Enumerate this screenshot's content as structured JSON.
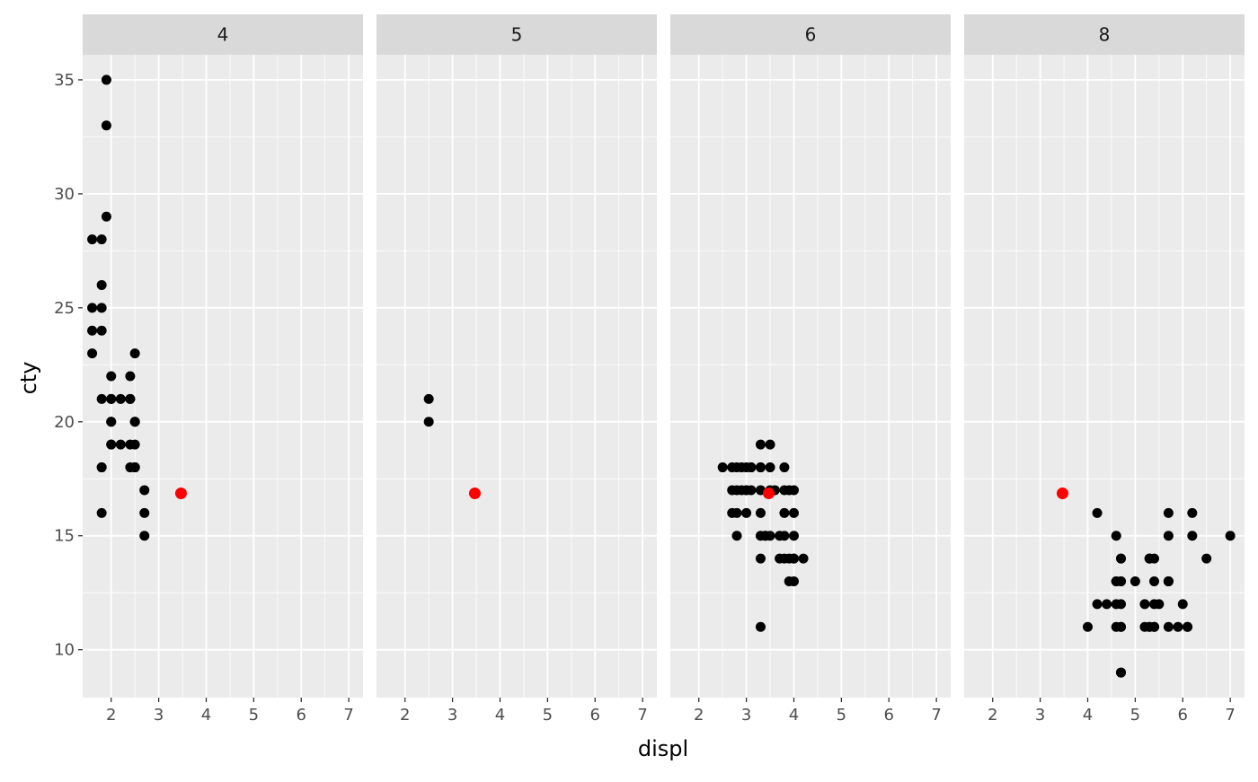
{
  "chart_data": {
    "type": "scatter",
    "facet_variable": "cyl",
    "xlabel": "displ",
    "ylabel": "cty",
    "xlim": [
      1.4,
      7.3
    ],
    "ylim": [
      7.9,
      36.1
    ],
    "x_ticks": [
      2,
      3,
      4,
      5,
      6,
      7
    ],
    "y_ticks": [
      10,
      15,
      20,
      25,
      30,
      35
    ],
    "grid": true,
    "point_color": "#000000",
    "highlight_color": "#ff0000",
    "panel_background": "#ebebeb",
    "strip_background": "#d9d9d9",
    "highlight_point": {
      "x": 3.47,
      "y": 16.86
    },
    "facets": [
      {
        "label": "4",
        "points": [
          [
            1.8,
            18
          ],
          [
            1.8,
            21
          ],
          [
            2.0,
            20
          ],
          [
            2.0,
            21
          ],
          [
            1.8,
            16
          ],
          [
            1.8,
            18
          ],
          [
            2.0,
            20
          ],
          [
            2.0,
            19
          ],
          [
            2.0,
            22
          ],
          [
            2.4,
            21
          ],
          [
            2.4,
            19
          ],
          [
            2.5,
            18
          ],
          [
            2.5,
            20
          ],
          [
            2.2,
            21
          ],
          [
            2.2,
            19
          ],
          [
            2.5,
            18
          ],
          [
            2.5,
            20
          ],
          [
            2.7,
            17
          ],
          [
            2.7,
            16
          ],
          [
            2.7,
            15
          ],
          [
            1.8,
            28
          ],
          [
            1.6,
            28
          ],
          [
            1.6,
            25
          ],
          [
            1.6,
            24
          ],
          [
            1.6,
            23
          ],
          [
            1.8,
            24
          ],
          [
            1.8,
            25
          ],
          [
            1.8,
            26
          ],
          [
            1.9,
            33
          ],
          [
            1.9,
            35
          ],
          [
            1.9,
            29
          ],
          [
            2.4,
            22
          ],
          [
            2.4,
            21
          ],
          [
            2.5,
            23
          ],
          [
            2.5,
            19
          ],
          [
            2.5,
            18
          ],
          [
            2.4,
            18
          ],
          [
            2.0,
            19
          ],
          [
            2.0,
            21
          ]
        ]
      },
      {
        "label": "5",
        "points": [
          [
            2.5,
            21
          ],
          [
            2.5,
            20
          ]
        ]
      },
      {
        "label": "6",
        "points": [
          [
            2.8,
            16
          ],
          [
            3.1,
            18
          ],
          [
            2.8,
            18
          ],
          [
            3.0,
            16
          ],
          [
            3.1,
            17
          ],
          [
            3.3,
            16
          ],
          [
            3.3,
            15
          ],
          [
            3.8,
            15
          ],
          [
            3.8,
            16
          ],
          [
            3.3,
            17
          ],
          [
            3.3,
            19
          ],
          [
            3.5,
            19
          ],
          [
            3.0,
            18
          ],
          [
            3.5,
            18
          ],
          [
            2.5,
            18
          ],
          [
            2.7,
            17
          ],
          [
            2.8,
            17
          ],
          [
            3.0,
            17
          ],
          [
            3.1,
            18
          ],
          [
            3.3,
            18
          ],
          [
            3.5,
            17
          ],
          [
            3.8,
            17
          ],
          [
            3.8,
            18
          ],
          [
            3.9,
            17
          ],
          [
            4.0,
            17
          ],
          [
            4.0,
            16
          ],
          [
            4.0,
            15
          ],
          [
            3.7,
            15
          ],
          [
            3.7,
            14
          ],
          [
            4.0,
            14
          ],
          [
            4.2,
            14
          ],
          [
            3.3,
            11
          ],
          [
            3.4,
            15
          ],
          [
            3.8,
            14
          ],
          [
            3.9,
            14
          ],
          [
            4.0,
            13
          ],
          [
            3.9,
            13
          ],
          [
            2.7,
            16
          ],
          [
            2.8,
            15
          ],
          [
            3.0,
            17
          ],
          [
            3.3,
            14
          ],
          [
            2.9,
            17
          ],
          [
            3.4,
            15
          ],
          [
            3.5,
            15
          ],
          [
            3.6,
            17
          ],
          [
            2.9,
            18
          ],
          [
            3.3,
            18
          ],
          [
            4.0,
            14
          ],
          [
            2.7,
            18
          ]
        ]
      },
      {
        "label": "8",
        "points": [
          [
            5.3,
            14
          ],
          [
            5.3,
            11
          ],
          [
            5.3,
            14
          ],
          [
            5.7,
            13
          ],
          [
            6.0,
            12
          ],
          [
            5.7,
            16
          ],
          [
            5.7,
            15
          ],
          [
            6.2,
            16
          ],
          [
            6.2,
            15
          ],
          [
            7.0,
            15
          ],
          [
            5.3,
            14
          ],
          [
            5.3,
            11
          ],
          [
            5.7,
            11
          ],
          [
            6.5,
            14
          ],
          [
            4.7,
            9
          ],
          [
            4.7,
            13
          ],
          [
            4.7,
            11
          ],
          [
            5.2,
            11
          ],
          [
            5.2,
            12
          ],
          [
            5.7,
            13
          ],
          [
            5.9,
            11
          ],
          [
            4.6,
            11
          ],
          [
            5.4,
            11
          ],
          [
            5.4,
            12
          ],
          [
            4.6,
            13
          ],
          [
            5.4,
            14
          ],
          [
            5.4,
            13
          ],
          [
            4.7,
            12
          ],
          [
            4.7,
            14
          ],
          [
            5.0,
            13
          ],
          [
            4.2,
            16
          ],
          [
            4.2,
            12
          ],
          [
            4.4,
            12
          ],
          [
            5.4,
            11
          ],
          [
            4.0,
            11
          ],
          [
            4.6,
            13
          ],
          [
            4.6,
            15
          ],
          [
            6.1,
            11
          ],
          [
            4.7,
            9
          ],
          [
            4.7,
            14
          ],
          [
            4.7,
            13
          ],
          [
            4.7,
            11
          ],
          [
            5.7,
            13
          ],
          [
            6.1,
            11
          ],
          [
            4.6,
            12
          ],
          [
            5.5,
            12
          ]
        ]
      }
    ]
  }
}
